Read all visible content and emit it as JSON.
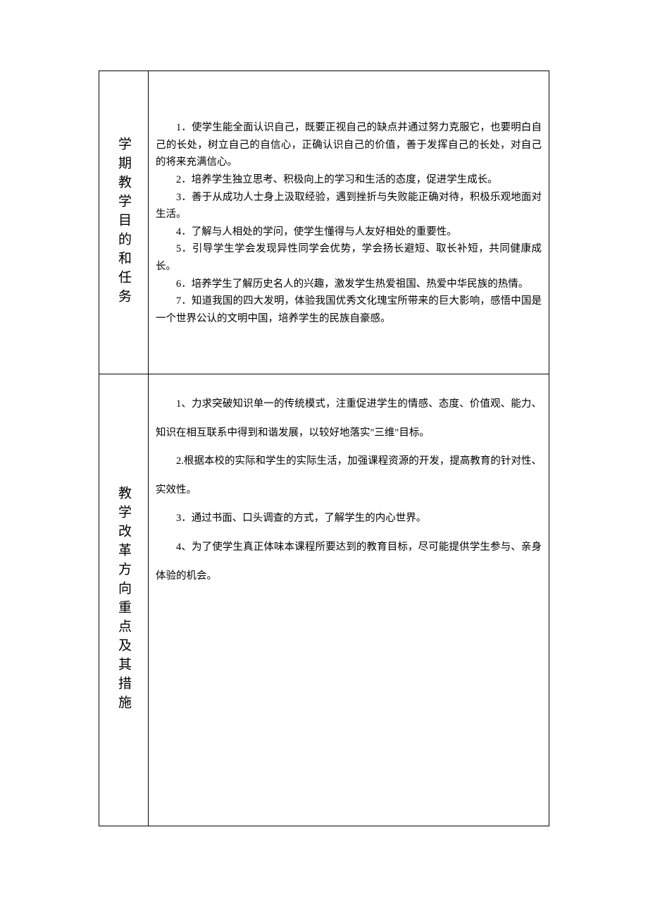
{
  "section1": {
    "label": "学期教学目的和任务",
    "items": [
      "1．使学生能全面认识自己，既要正视自己的缺点并通过努力克服它，也要明白自己的长处，树立自己的自信心，正确认识自己的价值，善于发挥自己的长处，对自己的将来充满信心。",
      "2．培养学生独立思考、积极向上的学习和生活的态度，促进学生成长。",
      "3．善于从成功人士身上汲取经验，遇到挫折与失败能正确对待，积极乐观地面对生活。",
      "4．了解与人相处的学问，使学生懂得与人友好相处的重要性。",
      "5．引导学生学会发现异性同学会优势，学会扬长避短、取长补短，共同健康成长。",
      "6．培养学生了解历史名人的兴趣，激发学生热爱祖国、热爱中华民族的热情。",
      "7．知道我国的四大发明，体验我国优秀文化瑰宝所带来的巨大影响，感悟中国是一个世界公认的文明中国，培养学生的民族自豪感。"
    ]
  },
  "section2": {
    "label": "教学改革方向重点及其措施",
    "items": [
      "1、力求突破知识单一的传统模式，注重促进学生的情感、态度、价值观、能力、知识在相互联系中得到和谐发展，以较好地落实\"三维\"目标。",
      "2.根据本校的实际和学生的实际生活，加强课程资源的开发，提高教育的针对性、实效性。",
      "3．通过书面、口头调查的方式，了解学生的内心世界。",
      "4、为了使学生真正体味本课程所要达到的教育目标，尽可能提供学生参与、亲身体验的机会。"
    ]
  },
  "styling": {
    "background_color": "#ffffff",
    "border_color": "#000000",
    "text_color": "#000000",
    "label_fontsize": 19,
    "content_fontsize": 14.5,
    "font_family": "SimSun"
  }
}
